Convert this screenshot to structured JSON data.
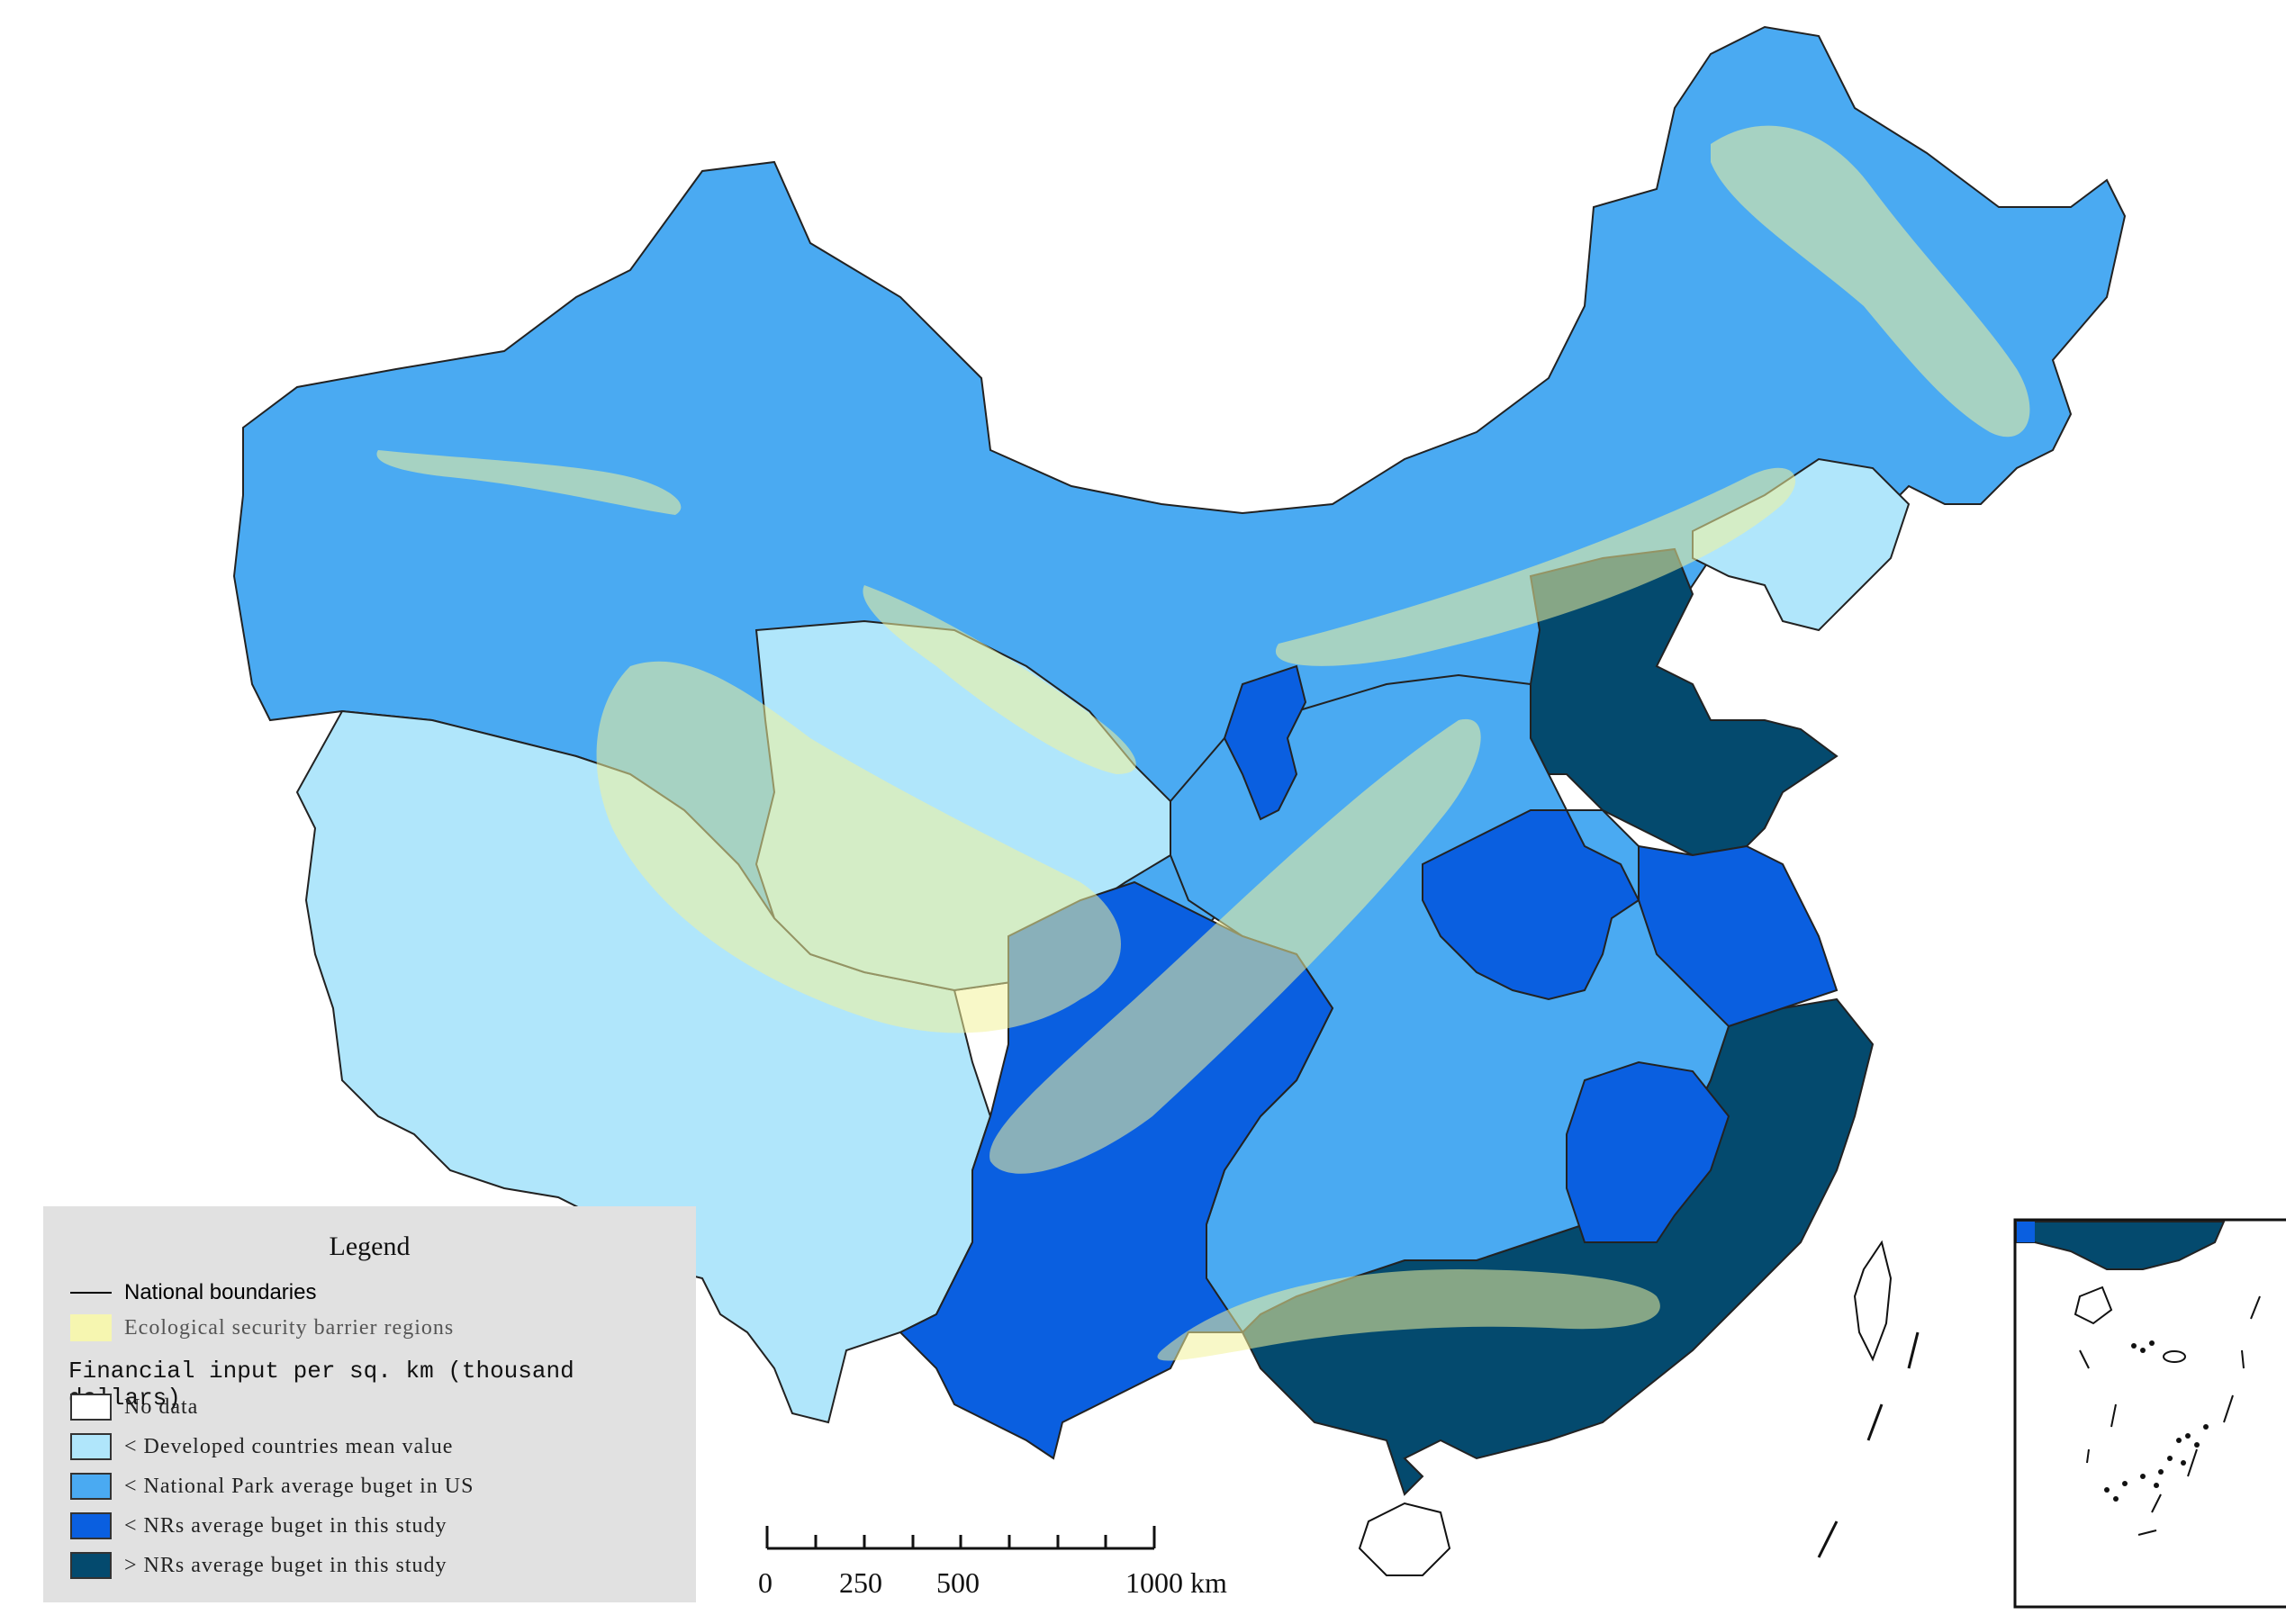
{
  "legend": {
    "title": "Legend",
    "boundary_label": "National boundaries",
    "barrier_label": "Ecological security barrier regions",
    "financial_heading": "Financial input per sq. km (thousand dollars)",
    "classes": [
      {
        "label": "No data",
        "color": "#ffffff"
      },
      {
        "label": "< Developed countries mean value",
        "color": "#b0e6fb"
      },
      {
        "label": "< National Park average buget in US",
        "color": "#4aaaf2"
      },
      {
        "label": "< NRs average buget in this study",
        "color": "#0a5fe0"
      },
      {
        "label": "> NRs average buget in this study",
        "color": "#044a6e"
      }
    ],
    "barrier_color": "#f6f6b0"
  },
  "scale_bar": {
    "labels": [
      "0",
      "250",
      "500",
      "1000 km"
    ]
  },
  "colors": {
    "barrier_overlay": "#f2f29a",
    "boundary": "#000000",
    "background": "#ffffff"
  }
}
